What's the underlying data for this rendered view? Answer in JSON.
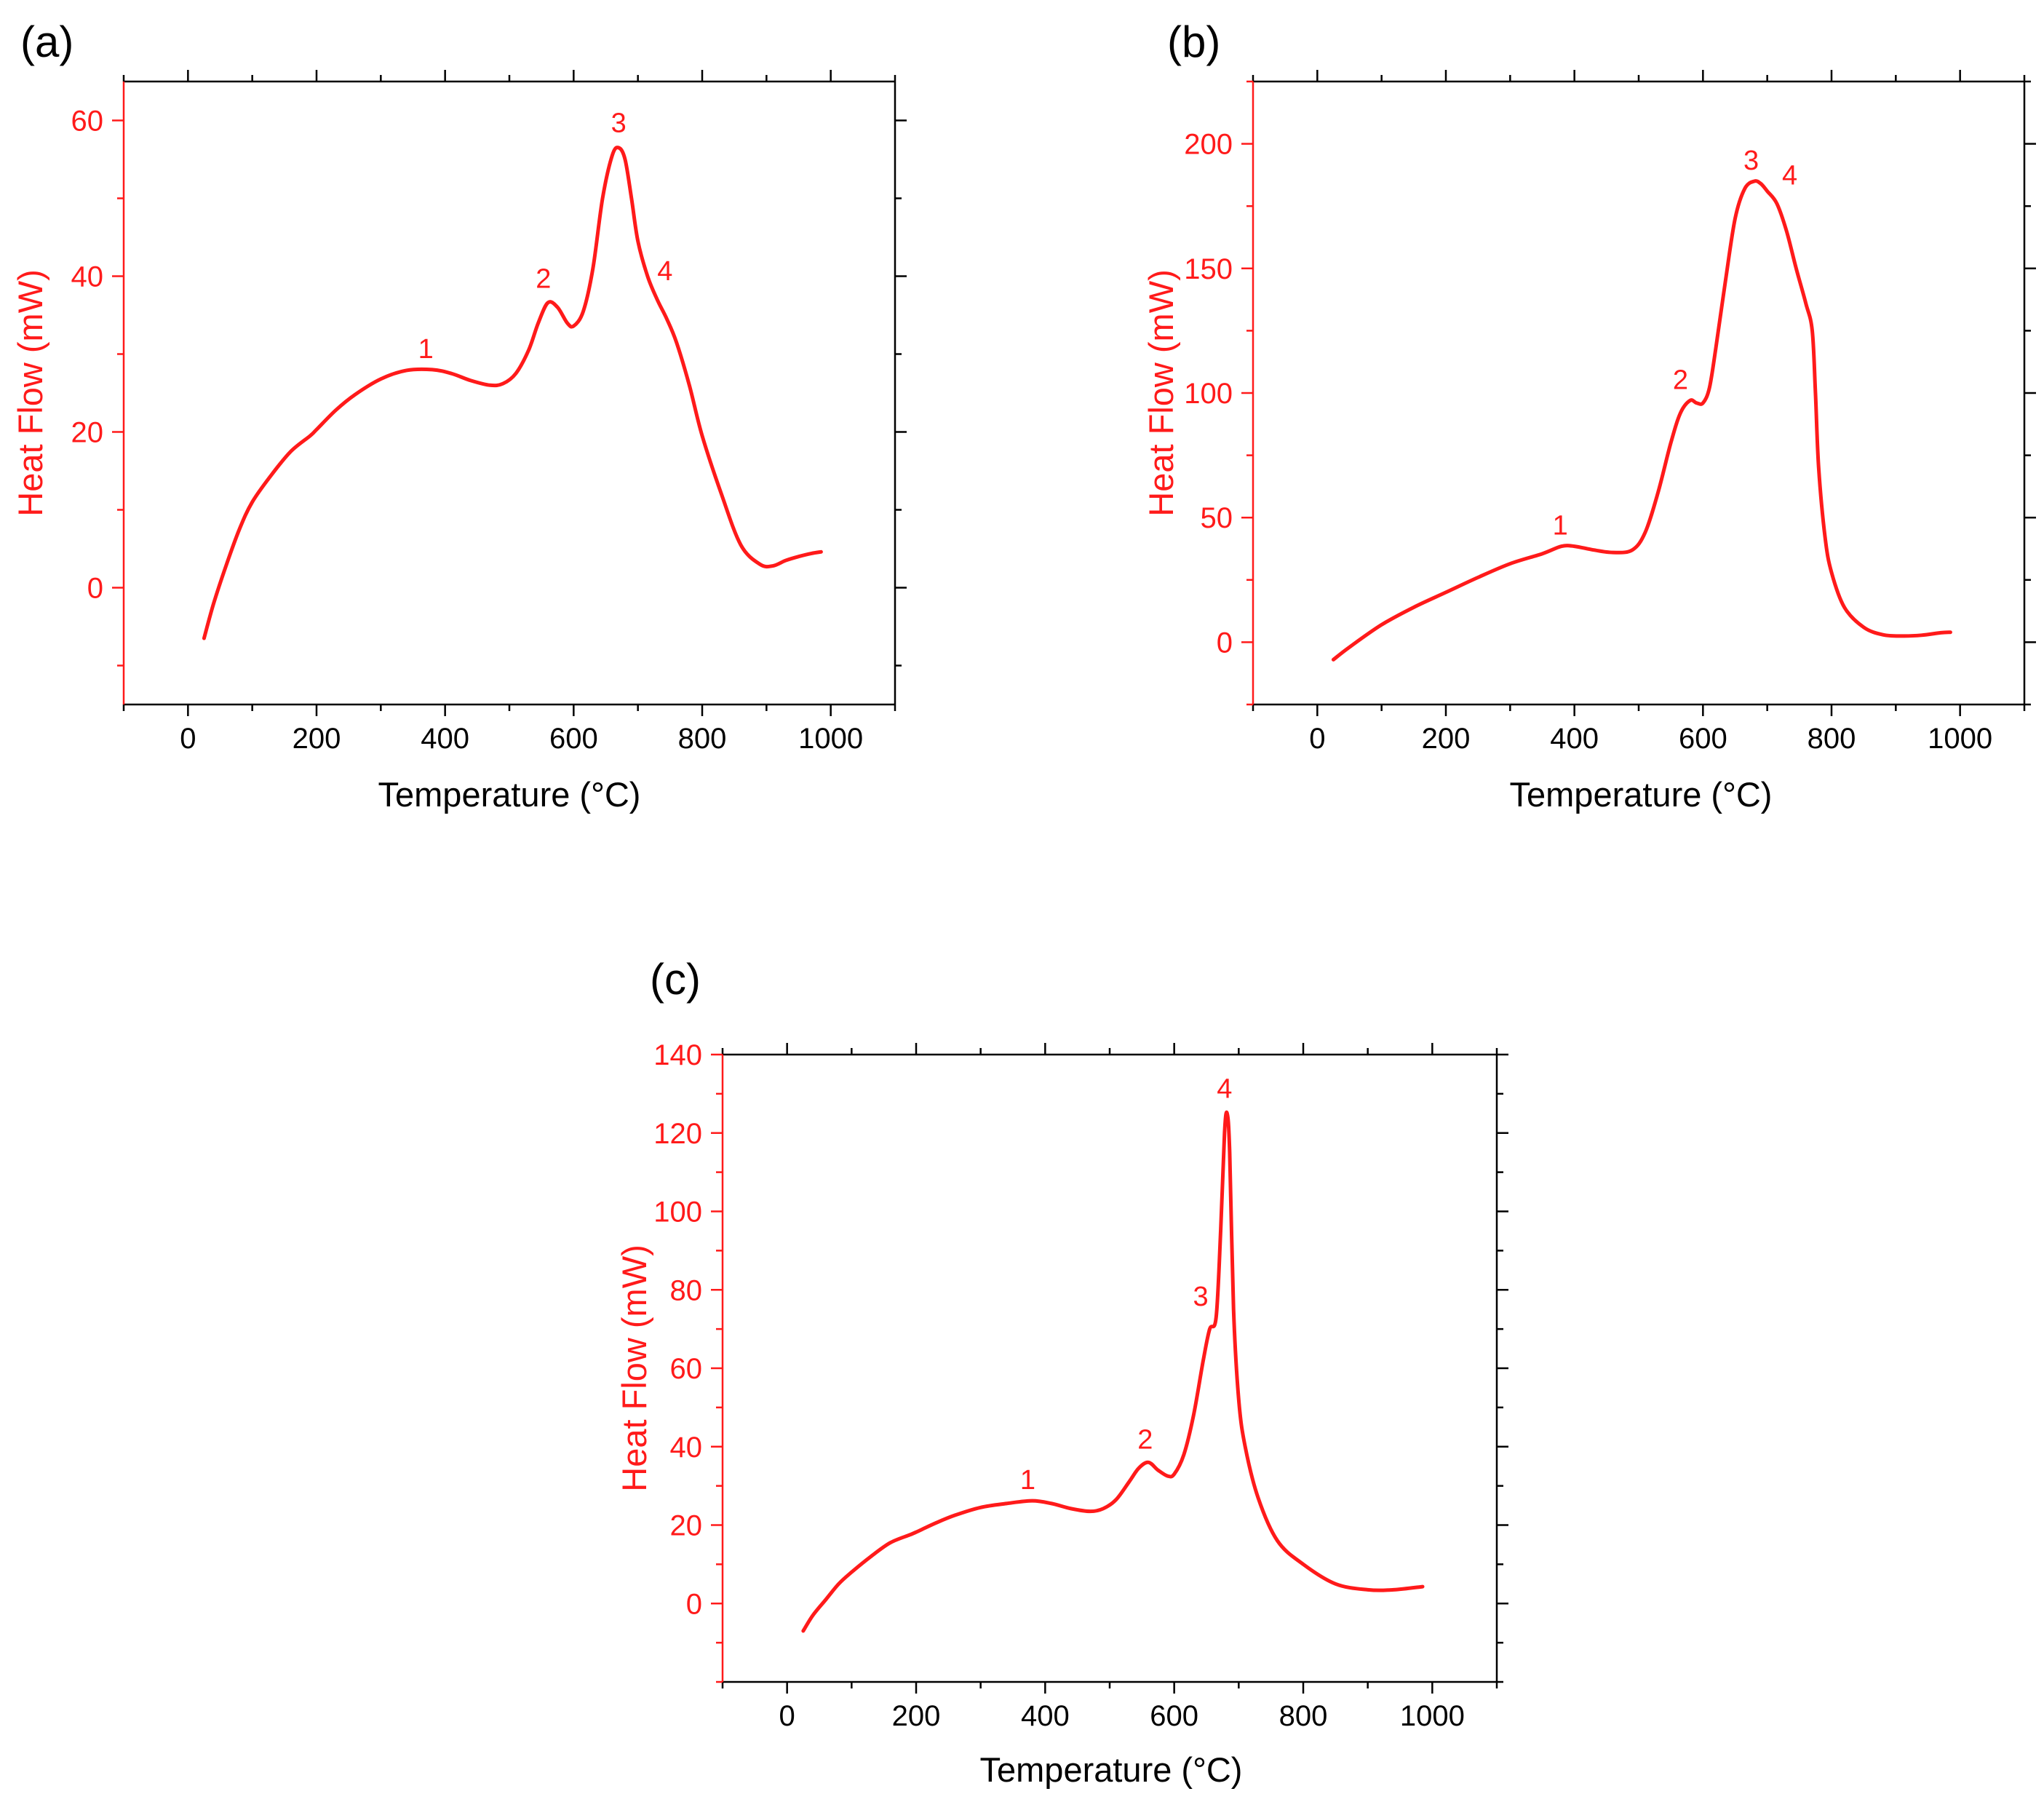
{
  "colors": {
    "series": "#ff1a1a",
    "axis": "#000000",
    "background": "#ffffff"
  },
  "chart_data": [
    {
      "type": "line",
      "panel_label": "(a)",
      "xlabel": "Temperature (°C)",
      "ylabel": "Heat Flow (mW)",
      "xlim": [
        -100,
        1100
      ],
      "ylim": [
        -15,
        65
      ],
      "xticks": [
        0,
        200,
        400,
        600,
        800,
        1000
      ],
      "xtick_labels": [
        "0",
        "200",
        "400",
        "600",
        "800",
        "1000"
      ],
      "yticks": [
        0,
        20,
        40,
        60
      ],
      "ytick_labels": [
        "0",
        "20",
        "40",
        "60"
      ],
      "grid": false,
      "series": [
        {
          "name": "Heat Flow",
          "x": [
            25,
            40,
            60,
            80,
            100,
            130,
            160,
            190,
            200,
            230,
            260,
            300,
            340,
            380,
            410,
            440,
            470,
            490,
            510,
            530,
            545,
            560,
            575,
            590,
            600,
            615,
            630,
            645,
            660,
            670,
            680,
            690,
            700,
            715,
            730,
            745,
            760,
            780,
            800,
            830,
            860,
            890,
            910,
            930,
            950,
            970,
            985
          ],
          "y": [
            -6.5,
            -2,
            3,
            7.5,
            11,
            14.5,
            17.5,
            19.5,
            20.3,
            22.8,
            24.8,
            26.8,
            27.9,
            28.0,
            27.5,
            26.6,
            26.0,
            26.2,
            27.5,
            30.5,
            34,
            36.6,
            36,
            34,
            33.6,
            35.5,
            41,
            50,
            55.5,
            56.5,
            55,
            50,
            44.5,
            40,
            37,
            34.5,
            31.5,
            26,
            19.5,
            12,
            5.5,
            3,
            2.8,
            3.5,
            4.0,
            4.4,
            4.6
          ]
        }
      ],
      "annotations": [
        {
          "text": "1",
          "x": 370,
          "y": 28
        },
        {
          "text": "2",
          "x": 553,
          "y": 37
        },
        {
          "text": "3",
          "x": 670,
          "y": 57
        },
        {
          "text": "4",
          "x": 742,
          "y": 38
        }
      ]
    },
    {
      "type": "line",
      "panel_label": "(b)",
      "xlabel": "Temperature (°C)",
      "ylabel": "Heat Flow (mW)",
      "xlim": [
        -100,
        1100
      ],
      "ylim": [
        -25,
        225
      ],
      "xticks": [
        0,
        200,
        400,
        600,
        800,
        1000
      ],
      "xtick_labels": [
        "0",
        "200",
        "400",
        "600",
        "800",
        "1000"
      ],
      "yticks": [
        0,
        50,
        100,
        150,
        200
      ],
      "ytick_labels": [
        "0",
        "50",
        "100",
        "150",
        "200"
      ],
      "grid": false,
      "series": [
        {
          "name": "Heat Flow",
          "x": [
            25,
            50,
            100,
            150,
            200,
            250,
            300,
            350,
            380,
            400,
            430,
            460,
            490,
            510,
            530,
            550,
            565,
            580,
            590,
            600,
            610,
            620,
            635,
            650,
            665,
            680,
            690,
            700,
            715,
            730,
            745,
            760,
            770,
            775,
            780,
            790,
            800,
            820,
            850,
            880,
            910,
            940,
            970,
            985
          ],
          "y": [
            -7,
            -2,
            7,
            14,
            20,
            26,
            31.5,
            35.5,
            38.5,
            38.5,
            37,
            36,
            37,
            44,
            60,
            80,
            92,
            97,
            96,
            96,
            102,
            118,
            145,
            170,
            182,
            185,
            184,
            181,
            176,
            165,
            150,
            136,
            125,
            100,
            70,
            42,
            28,
            14,
            6,
            3,
            2.5,
            2.8,
            3.8,
            4.0
          ]
        }
      ],
      "annotations": [
        {
          "text": "1",
          "x": 378,
          "y": 38.5
        },
        {
          "text": "2",
          "x": 565,
          "y": 97
        },
        {
          "text": "3",
          "x": 675,
          "y": 185
        },
        {
          "text": "4",
          "x": 735,
          "y": 179
        }
      ]
    },
    {
      "type": "line",
      "panel_label": "(c)",
      "xlabel": "Temperature (°C)",
      "ylabel": "Heat Flow (mW)",
      "xlim": [
        -100,
        1100
      ],
      "ylim": [
        -20,
        140
      ],
      "xticks": [
        0,
        200,
        400,
        600,
        800,
        1000
      ],
      "xtick_labels": [
        "0",
        "200",
        "400",
        "600",
        "800",
        "1000"
      ],
      "yticks": [
        0,
        20,
        40,
        60,
        80,
        100,
        120,
        140
      ],
      "ytick_labels": [
        "0",
        "20",
        "40",
        "60",
        "80",
        "100",
        "120",
        "140"
      ],
      "grid": false,
      "series": [
        {
          "name": "Heat Flow",
          "x": [
            25,
            40,
            60,
            80,
            100,
            130,
            160,
            190,
            200,
            230,
            260,
            300,
            340,
            380,
            410,
            440,
            470,
            490,
            510,
            530,
            545,
            560,
            575,
            590,
            600,
            615,
            630,
            645,
            655,
            665,
            672,
            678,
            682,
            686,
            692,
            700,
            710,
            730,
            760,
            800,
            850,
            900,
            940,
            985
          ],
          "y": [
            -7,
            -3,
            1,
            5,
            8,
            12,
            15.5,
            17.5,
            18.2,
            20.5,
            22.5,
            24.5,
            25.5,
            26.2,
            25.5,
            24.2,
            23.5,
            24.2,
            26.5,
            31,
            34.5,
            36,
            34,
            32.5,
            33,
            38,
            48,
            62,
            70,
            73,
            95,
            120,
            125,
            115,
            75,
            52,
            40,
            27,
            16,
            10,
            5,
            3.5,
            3.5,
            4.3
          ]
        }
      ],
      "annotations": [
        {
          "text": "1",
          "x": 373,
          "y": 26.2
        },
        {
          "text": "2",
          "x": 555,
          "y": 36.5
        },
        {
          "text": "3",
          "x": 641,
          "y": 73
        },
        {
          "text": "4",
          "x": 678,
          "y": 126
        }
      ]
    }
  ]
}
